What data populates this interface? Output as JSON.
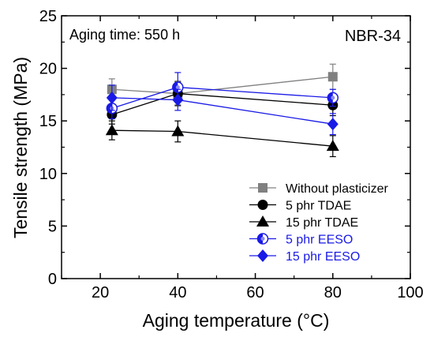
{
  "chart_data": {
    "type": "line",
    "xlabel": "Aging temperature (°C)",
    "ylabel": "Tensile strength (MPa)",
    "xlim": [
      10,
      100
    ],
    "ylim": [
      0,
      25
    ],
    "xticks": [
      20,
      40,
      60,
      80,
      100
    ],
    "yticks": [
      0,
      5,
      10,
      15,
      20,
      25
    ],
    "grid": false,
    "legend_position": "bottom-right",
    "annotations": {
      "aging_time": "Aging time: 550 h",
      "material": "NBR-34"
    },
    "series": [
      {
        "name": "Without plasticizer",
        "color": "#808080",
        "marker": "square",
        "x": [
          23,
          40,
          80
        ],
        "y": [
          18.0,
          17.6,
          19.2
        ],
        "err": [
          1.0,
          1.2,
          1.2
        ]
      },
      {
        "name": "5 phr TDAE",
        "color": "#000000",
        "marker": "circle",
        "x": [
          23,
          40,
          80
        ],
        "y": [
          15.6,
          17.6,
          16.5
        ],
        "err": [
          0.9,
          1.1,
          1.0
        ]
      },
      {
        "name": "15 phr TDAE",
        "color": "#000000",
        "marker": "triangle",
        "x": [
          23,
          40,
          80
        ],
        "y": [
          14.1,
          14.0,
          12.6
        ],
        "err": [
          0.9,
          1.0,
          1.0
        ]
      },
      {
        "name": "5 phr EESO",
        "color": "#1a1ae6",
        "marker": "half-circle",
        "x": [
          23,
          40,
          80
        ],
        "y": [
          16.2,
          18.2,
          17.2
        ],
        "err": [
          1.0,
          1.4,
          0.8
        ]
      },
      {
        "name": "15 phr EESO",
        "color": "#1a1ae6",
        "marker": "diamond",
        "x": [
          23,
          40,
          80
        ],
        "y": [
          17.2,
          17.0,
          14.7
        ],
        "err": [
          1.2,
          1.0,
          1.0
        ]
      }
    ]
  }
}
